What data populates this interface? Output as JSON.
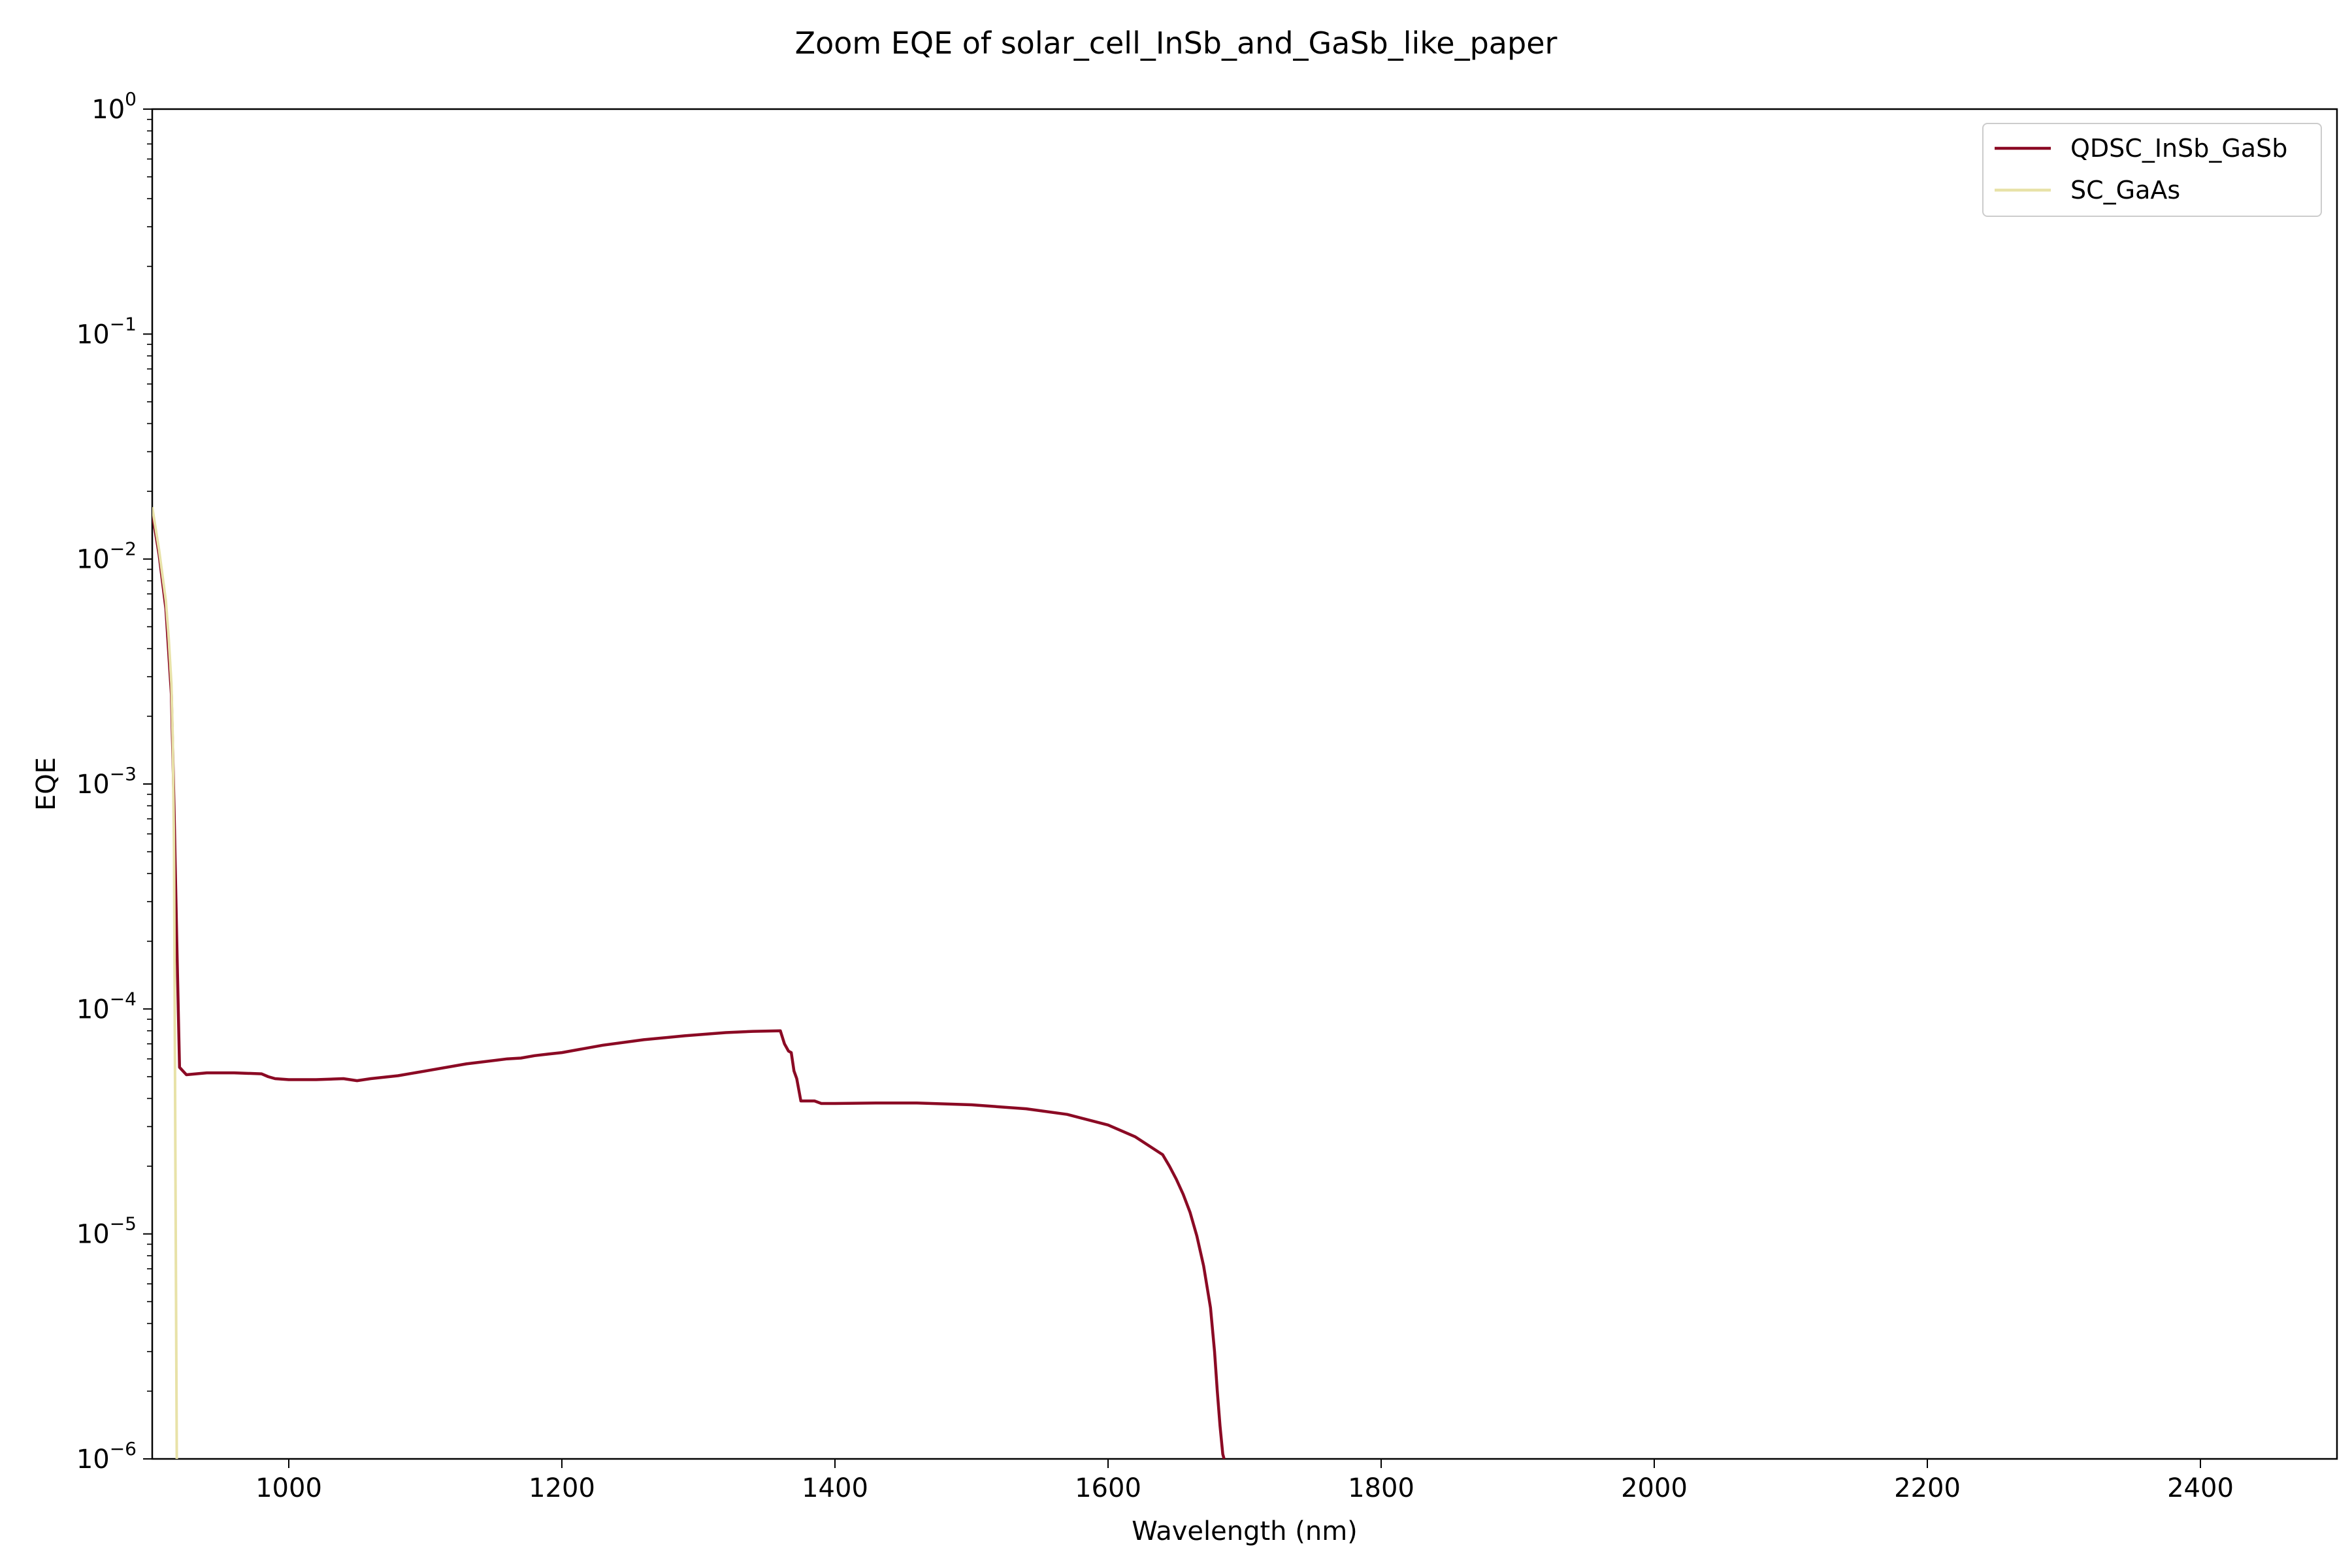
{
  "chart_data": {
    "type": "line",
    "title": "Zoom EQE of solar_cell_InSb_and_GaSb_like_paper",
    "xlabel": "Wavelength (nm)",
    "ylabel": "EQE",
    "xlim": [
      900,
      2500
    ],
    "ylim": [
      1e-06,
      1
    ],
    "yscale": "log",
    "grid": false,
    "legend_position": "top-right",
    "x_ticks": [
      1000,
      1200,
      1400,
      1600,
      1800,
      2000,
      2200,
      2400
    ],
    "x_tick_labels": [
      "1000",
      "1200",
      "1400",
      "1600",
      "1800",
      "2000",
      "2200",
      "2400"
    ],
    "y_ticks": [
      1e-06,
      1e-05,
      0.0001,
      0.001,
      0.01,
      0.1,
      1
    ],
    "y_tick_labels": [
      {
        "base": "10",
        "exp": "−6"
      },
      {
        "base": "10",
        "exp": "−5"
      },
      {
        "base": "10",
        "exp": "−4"
      },
      {
        "base": "10",
        "exp": "−3"
      },
      {
        "base": "10",
        "exp": "−2"
      },
      {
        "base": "10",
        "exp": "−1"
      },
      {
        "base": "10",
        "exp": "0"
      }
    ],
    "series": [
      {
        "name": "QDSC_InSb_GaSb",
        "color": "#8b0a24",
        "x": [
          900,
          905,
          910,
          914,
          916,
          918,
          920,
          925,
          940,
          960,
          980,
          985,
          990,
          1000,
          1020,
          1040,
          1050,
          1060,
          1080,
          1100,
          1130,
          1160,
          1170,
          1180,
          1190,
          1200,
          1230,
          1260,
          1290,
          1320,
          1340,
          1360,
          1363,
          1366,
          1368,
          1370,
          1372,
          1375,
          1380,
          1385,
          1390,
          1400,
          1430,
          1460,
          1500,
          1540,
          1570,
          1600,
          1620,
          1640,
          1645,
          1650,
          1655,
          1660,
          1665,
          1670,
          1675,
          1678,
          1680,
          1682,
          1684,
          1685
        ],
        "y": [
          0.016,
          0.0105,
          0.006,
          0.0025,
          0.0008,
          0.0002,
          5.5e-05,
          5.1e-05,
          5.2e-05,
          5.2e-05,
          5.15e-05,
          5e-05,
          4.9e-05,
          4.85e-05,
          4.85e-05,
          4.9e-05,
          4.8e-05,
          4.9e-05,
          5.05e-05,
          5.3e-05,
          5.7e-05,
          6e-05,
          6.05e-05,
          6.2e-05,
          6.3e-05,
          6.4e-05,
          6.9e-05,
          7.3e-05,
          7.6e-05,
          7.85e-05,
          7.95e-05,
          8e-05,
          7e-05,
          6.5e-05,
          6.4e-05,
          5.3e-05,
          4.9e-05,
          3.9e-05,
          3.9e-05,
          3.9e-05,
          3.8e-05,
          3.8e-05,
          3.82e-05,
          3.82e-05,
          3.75e-05,
          3.6e-05,
          3.4e-05,
          3.05e-05,
          2.7e-05,
          2.25e-05,
          2e-05,
          1.75e-05,
          1.5e-05,
          1.25e-05,
          9.8e-06,
          7.2e-06,
          4.7e-06,
          3e-06,
          2e-06,
          1.4e-06,
          1.05e-06,
          1e-06
        ]
      },
      {
        "name": "SC_GaAs",
        "color": "#e8e2a8",
        "x": [
          900,
          905,
          910,
          912,
          914,
          915,
          916,
          917,
          918
        ],
        "y": [
          0.017,
          0.011,
          0.0065,
          0.0045,
          0.0028,
          0.0016,
          0.0005,
          2e-05,
          1e-06
        ]
      }
    ]
  }
}
